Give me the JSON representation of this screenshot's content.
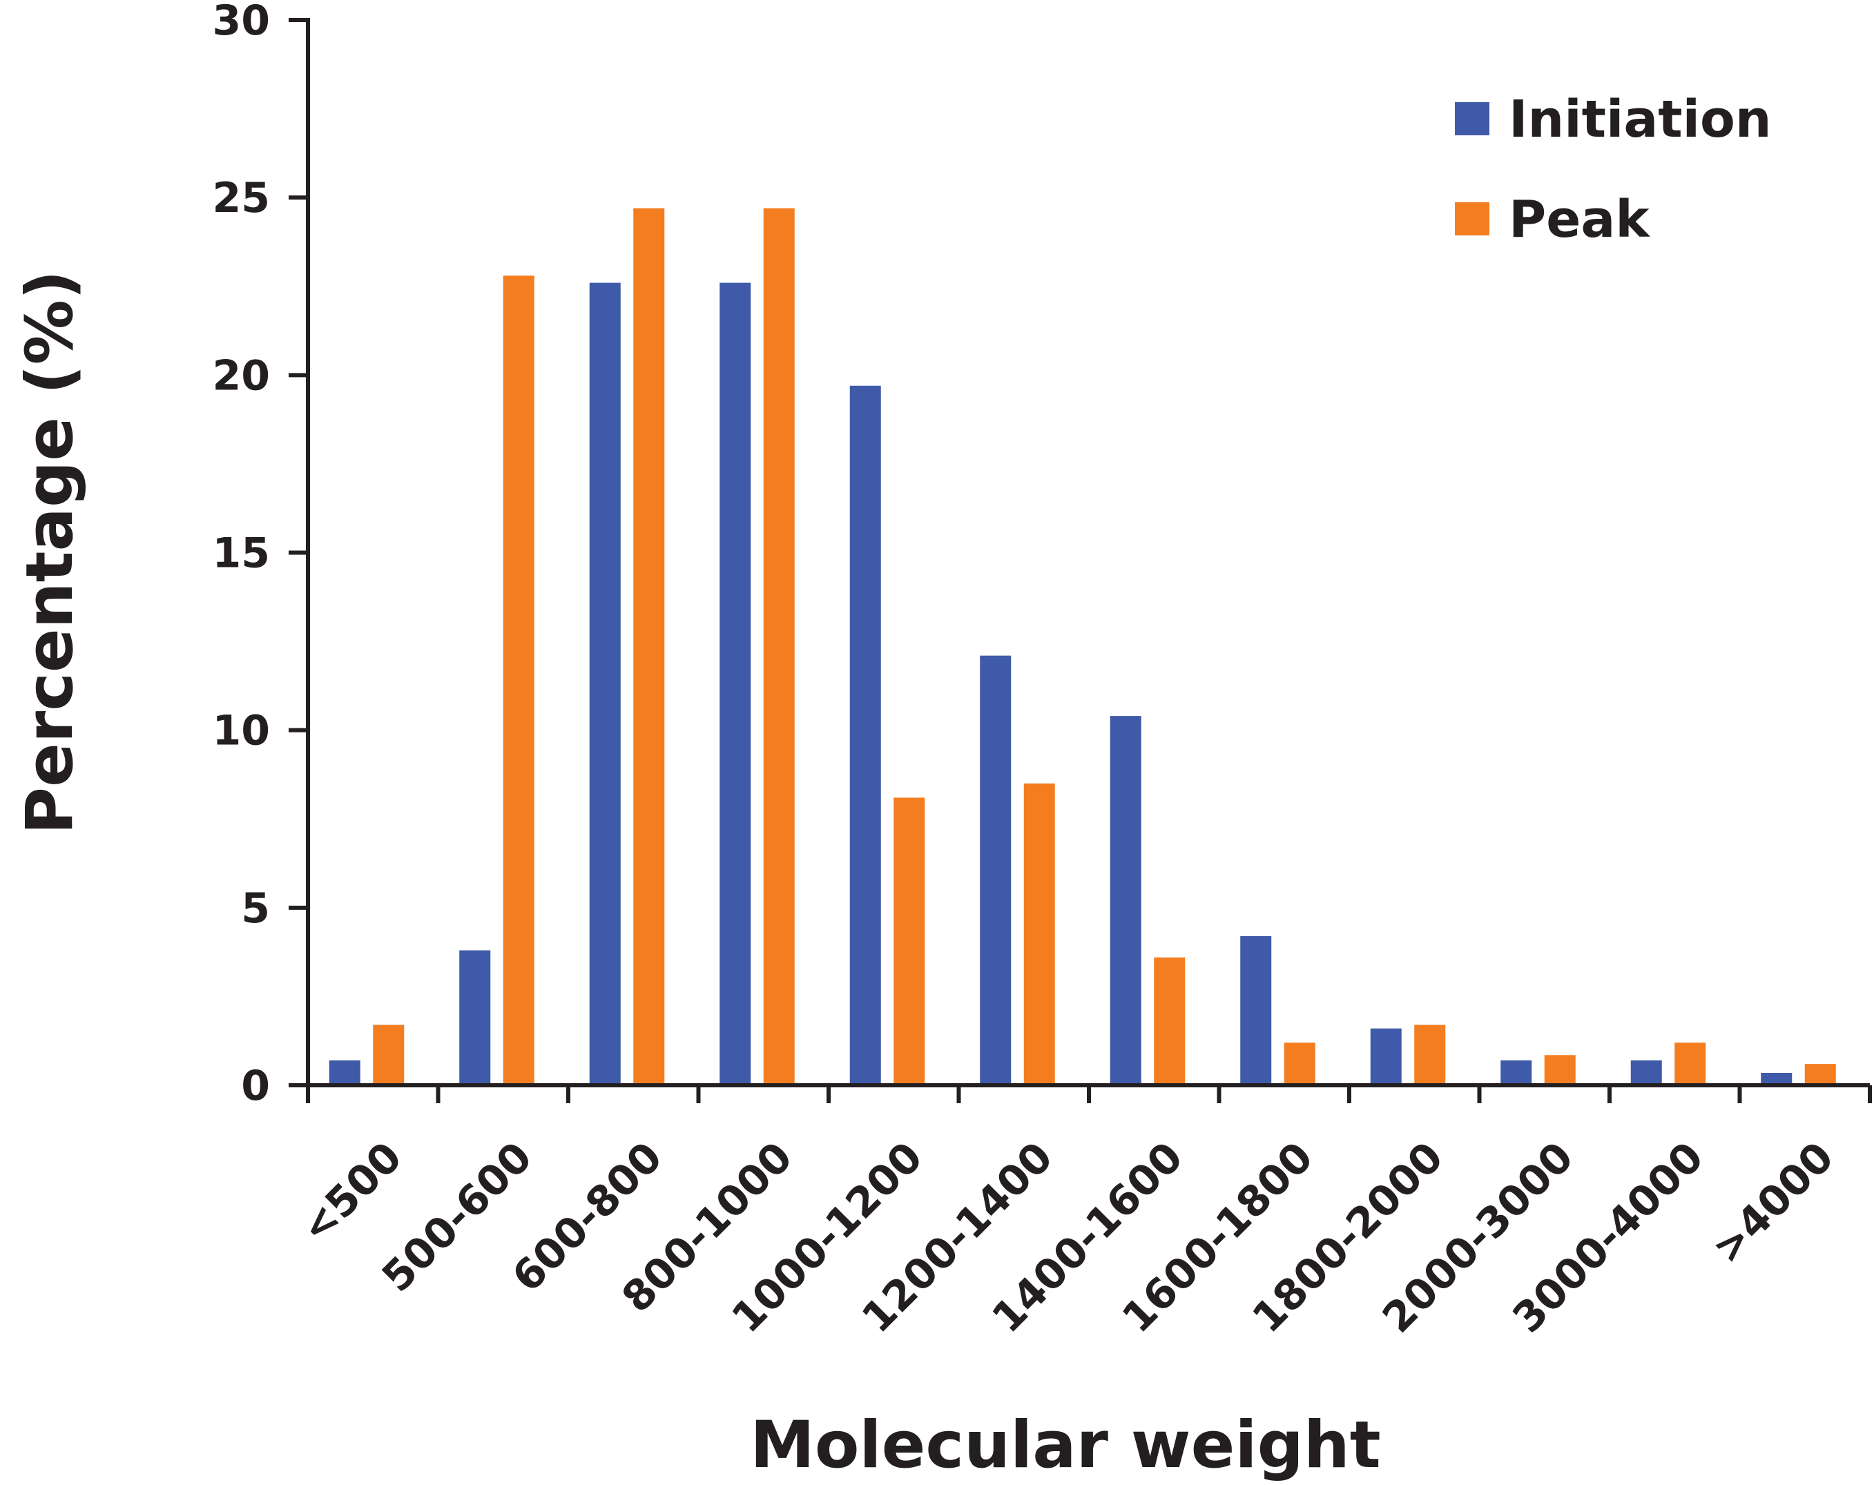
{
  "chart_data": {
    "type": "bar",
    "title": "",
    "xlabel": "Molecular weight",
    "ylabel": "Percentage (%)",
    "ylim": [
      0,
      30
    ],
    "yticks": [
      0,
      5,
      10,
      15,
      20,
      25,
      30
    ],
    "grid": false,
    "legend_position": "top-right",
    "categories": [
      "<500",
      "500-600",
      "600-800",
      "800-1000",
      "1000-1200",
      "1200-1400",
      "1400-1600",
      "1600-1800",
      "1800-2000",
      "2000-3000",
      "3000-4000",
      ">4000"
    ],
    "series": [
      {
        "name": "Initiation",
        "color": "#3f5aa8",
        "values": [
          0.7,
          3.8,
          22.6,
          22.6,
          19.7,
          12.1,
          10.4,
          4.2,
          1.6,
          0.7,
          0.7,
          0.35
        ]
      },
      {
        "name": "Peak",
        "color": "#f47d20",
        "values": [
          1.7,
          22.8,
          24.7,
          24.7,
          8.1,
          8.5,
          3.6,
          1.2,
          1.7,
          0.85,
          1.2,
          0.6
        ]
      }
    ]
  }
}
